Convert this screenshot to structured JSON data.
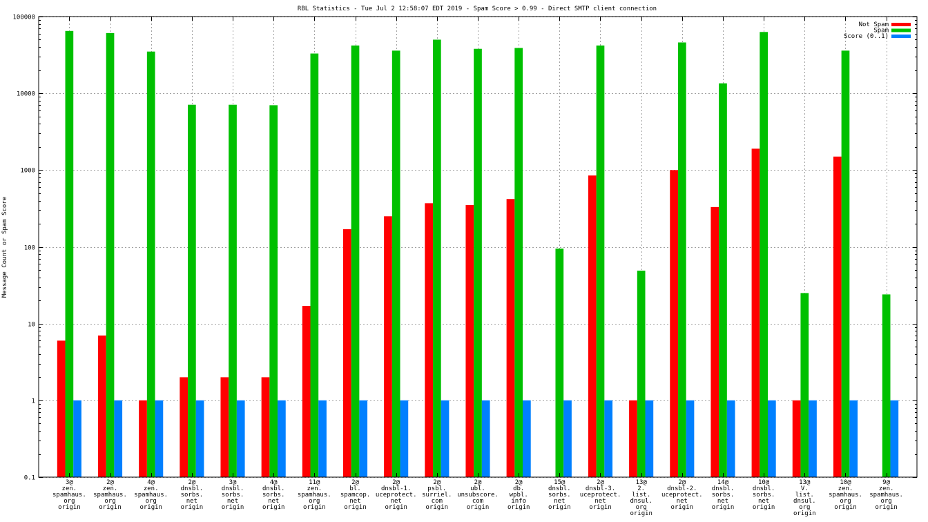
{
  "chart_data": {
    "type": "bar",
    "scale": "log",
    "title": "RBL Statistics - Tue Jul  2 12:58:07 EDT 2019 - Spam Score > 0.99 - Direct SMTP client connection",
    "xlabel": "",
    "ylabel": "Message Count or Spam Score",
    "ylim": [
      0.1,
      100000
    ],
    "yticks": [
      0.1,
      1,
      10,
      100,
      1000,
      10000,
      100000
    ],
    "ytick_labels": [
      "0.1",
      "1",
      "10",
      "100",
      "1000",
      "10000",
      "100000"
    ],
    "grid": true,
    "legend_position": "top-right",
    "colors": {
      "not_spam": "#ff0000",
      "spam": "#00c000",
      "score": "#0080ff"
    },
    "categories": [
      [
        "3@",
        "zen.",
        "spamhaus.",
        "org",
        "origin"
      ],
      [
        "2@",
        "zen.",
        "spamhaus.",
        "org",
        "origin"
      ],
      [
        "4@",
        "zen.",
        "spamhaus.",
        "org",
        "origin"
      ],
      [
        "2@",
        "dnsbl.",
        "sorbs.",
        "net",
        "origin"
      ],
      [
        "3@",
        "dnsbl.",
        "sorbs.",
        "net",
        "origin"
      ],
      [
        "4@",
        "dnsbl.",
        "sorbs.",
        "net",
        "origin"
      ],
      [
        "11@",
        "zen.",
        "spamhaus.",
        "org",
        "origin"
      ],
      [
        "2@",
        "bl.",
        "spamcop.",
        "net",
        "origin"
      ],
      [
        "2@",
        "dnsbl-1.",
        "uceprotect.",
        "net",
        "origin"
      ],
      [
        "2@",
        "psbl.",
        "surriel.",
        "com",
        "origin"
      ],
      [
        "2@",
        "ubl.",
        "unsubscore.",
        "com",
        "origin"
      ],
      [
        "2@",
        "db.",
        "wpbl.",
        "info",
        "origin"
      ],
      [
        "15@",
        "dnsbl.",
        "sorbs.",
        "net",
        "origin"
      ],
      [
        "2@",
        "dnsbl-3.",
        "uceprotect.",
        "net",
        "origin"
      ],
      [
        "13@",
        "2.",
        "list.",
        "dnsul.",
        "org",
        "origin"
      ],
      [
        "2@",
        "dnsbl-2.",
        "uceprotect.",
        "net",
        "origin"
      ],
      [
        "14@",
        "dnsbl.",
        "sorbs.",
        "net",
        "origin"
      ],
      [
        "10@",
        "dnsbl.",
        "sorbs.",
        "net",
        "origin"
      ],
      [
        "13@",
        "V.",
        "list.",
        "dnsul.",
        "org",
        "origin"
      ],
      [
        "10@",
        "zen.",
        "spamhaus.",
        "org",
        "origin"
      ],
      [
        "9@",
        "zen.",
        "spamhaus.",
        "org",
        "origin"
      ]
    ],
    "series": [
      {
        "name": "Not Spam",
        "key": "not_spam",
        "values": [
          6,
          7,
          1,
          2,
          2,
          2,
          17,
          170,
          250,
          370,
          350,
          420,
          null,
          850,
          1,
          1000,
          330,
          1900,
          1,
          1500,
          null
        ]
      },
      {
        "name": "Spam",
        "key": "spam",
        "values": [
          65000,
          61000,
          35000,
          7100,
          7100,
          7000,
          33000,
          42000,
          36000,
          50000,
          38000,
          39000,
          95,
          42000,
          49,
          46000,
          13500,
          63000,
          25,
          36000,
          24
        ]
      },
      {
        "name": "Score (0..1)",
        "key": "score",
        "values": [
          1,
          1,
          1,
          1,
          1,
          1,
          1,
          1,
          1,
          1,
          1,
          1,
          1,
          1,
          1,
          1,
          1,
          1,
          1,
          1,
          1
        ]
      }
    ]
  }
}
